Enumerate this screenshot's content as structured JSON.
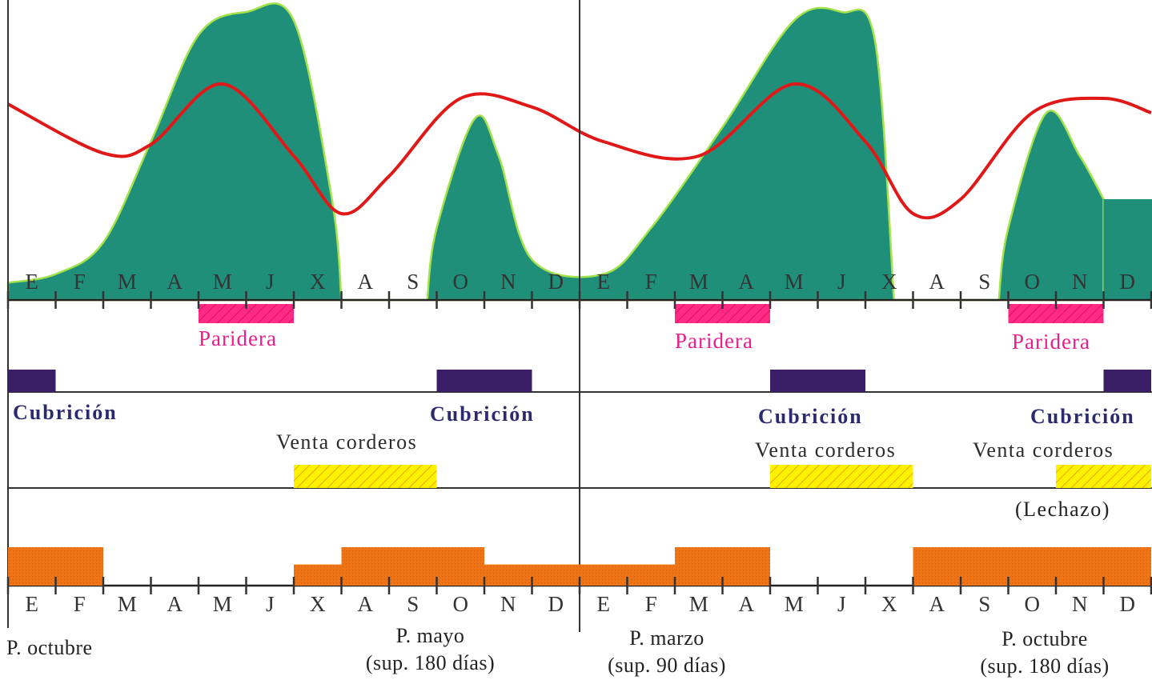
{
  "colors": {
    "grazing_area": "#1f8f7a",
    "grazing_outline": "#a4e24a",
    "requirements_curve": "#e01818",
    "paridera": "#ff0f7b",
    "cubricion": "#3a1f66",
    "venta_corderos": "#fff200",
    "supplement": "#ee7416"
  },
  "chart_data": {
    "type": "area",
    "months": [
      "E",
      "F",
      "M",
      "A",
      "M",
      "J",
      "X",
      "A",
      "S",
      "O",
      "N",
      "D",
      "E",
      "F",
      "M",
      "A",
      "M",
      "J",
      "X",
      "A",
      "S",
      "O",
      "N",
      "D"
    ],
    "grazing_area": [
      {
        "month": 0,
        "level": 0.06
      },
      {
        "month": 1,
        "level": 0.09
      },
      {
        "month": 2,
        "level": 0.2
      },
      {
        "month": 3,
        "level": 0.55
      },
      {
        "month": 4,
        "level": 0.92
      },
      {
        "month": 5,
        "level": 1.0
      },
      {
        "month": 6,
        "level": 0.97
      },
      {
        "month": 6.8,
        "level": 0.35
      },
      {
        "month": 7,
        "level": 0
      },
      {
        "month": 8.8,
        "level": 0
      },
      {
        "month": 9,
        "level": 0.25
      },
      {
        "month": 9.8,
        "level": 0.63
      },
      {
        "month": 10.3,
        "level": 0.5
      },
      {
        "month": 11,
        "level": 0.14
      },
      {
        "month": 12.5,
        "level": 0.09
      },
      {
        "month": 13.5,
        "level": 0.25
      },
      {
        "month": 15,
        "level": 0.6
      },
      {
        "month": 16.5,
        "level": 0.97
      },
      {
        "month": 17.5,
        "level": 1.0
      },
      {
        "month": 18.2,
        "level": 0.9
      },
      {
        "month": 18.6,
        "level": 0
      },
      {
        "month": 20.8,
        "level": 0
      },
      {
        "month": 21,
        "level": 0.25
      },
      {
        "month": 21.8,
        "level": 0.65
      },
      {
        "month": 22.5,
        "level": 0.5
      },
      {
        "month": 23,
        "level": 0.35
      }
    ],
    "requirements_curve": [
      {
        "month": 0,
        "level": 0.68
      },
      {
        "month": 2,
        "level": 0.51
      },
      {
        "month": 3,
        "level": 0.54
      },
      {
        "month": 4.5,
        "level": 0.75
      },
      {
        "month": 6,
        "level": 0.5
      },
      {
        "month": 7,
        "level": 0.3
      },
      {
        "month": 8,
        "level": 0.43
      },
      {
        "month": 9.5,
        "level": 0.7
      },
      {
        "month": 11,
        "level": 0.67
      },
      {
        "month": 12.5,
        "level": 0.55
      },
      {
        "month": 14.5,
        "level": 0.5
      },
      {
        "month": 16.5,
        "level": 0.75
      },
      {
        "month": 18,
        "level": 0.55
      },
      {
        "month": 19,
        "level": 0.3
      },
      {
        "month": 20,
        "level": 0.35
      },
      {
        "month": 21.5,
        "level": 0.65
      },
      {
        "month": 23,
        "level": 0.7
      },
      {
        "month": 24,
        "level": 0.65
      }
    ],
    "paridera_bars": [
      [
        4,
        6
      ],
      [
        14,
        16
      ],
      [
        21,
        23
      ]
    ],
    "cubricion_bars": [
      [
        0,
        1
      ],
      [
        9,
        11
      ],
      [
        16,
        18
      ],
      [
        23,
        24
      ]
    ],
    "venta_corderos_bars": [
      [
        6,
        9
      ],
      [
        16,
        19
      ],
      [
        22,
        24
      ]
    ],
    "supplement_steps": [
      {
        "from": 0,
        "to": 2,
        "level": 1
      },
      {
        "from": 6,
        "to": 7,
        "level": 0.55
      },
      {
        "from": 7,
        "to": 10,
        "level": 1
      },
      {
        "from": 10,
        "to": 14,
        "level": 0.55
      },
      {
        "from": 14,
        "to": 16,
        "level": 1
      },
      {
        "from": 19,
        "to": 24,
        "level": 1
      }
    ]
  },
  "labels": {
    "paridera": [
      "Paridera",
      "Paridera",
      "Paridera"
    ],
    "cubricion": [
      "Cubrición",
      "Cubrición",
      "Cubrición",
      "Cubrición"
    ],
    "venta": [
      "Venta corderos",
      "Venta corderos",
      "Venta corderos"
    ],
    "lechazo": "(Lechazo)",
    "bottom": [
      {
        "line1": "P. octubre",
        "line2": ""
      },
      {
        "line1": "P. mayo",
        "line2": "(sup. 180 días)"
      },
      {
        "line1": "P. marzo",
        "line2": "(sup. 90 días)"
      },
      {
        "line1": "P. octubre",
        "line2": "(sup. 180 días)"
      }
    ]
  }
}
